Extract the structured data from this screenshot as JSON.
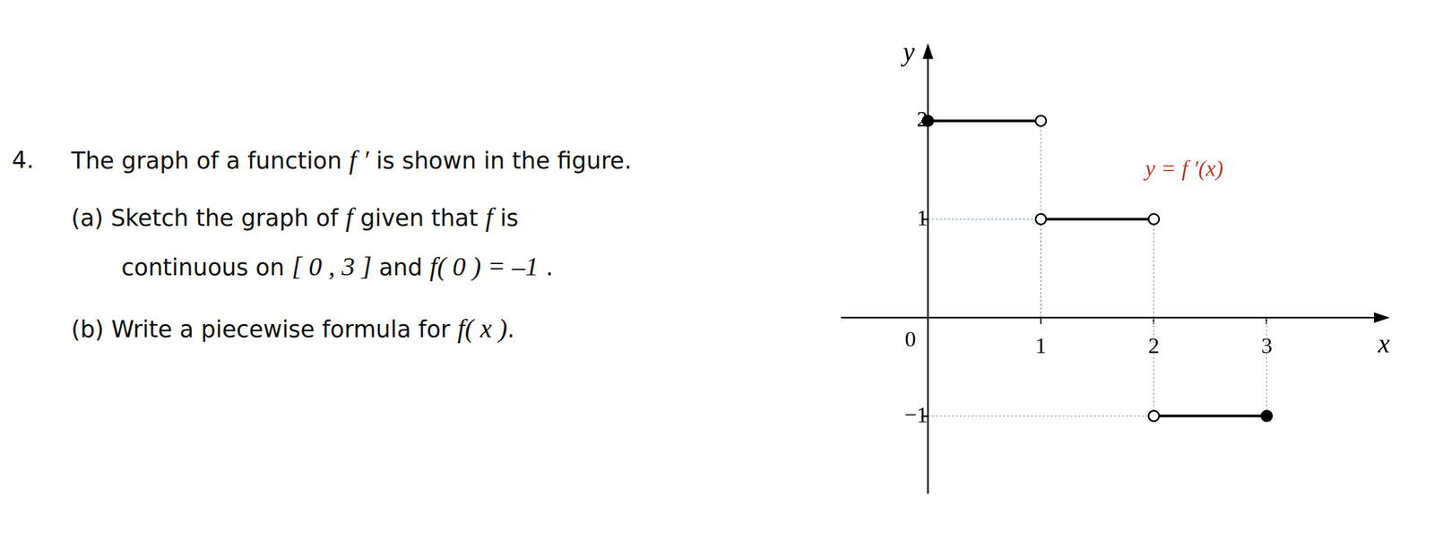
{
  "problem": {
    "number": "4.",
    "lines": [
      [
        {
          "text": "The graph of a function "
        },
        {
          "math": "f ′"
        },
        {
          "text": " is shown in the figure."
        }
      ],
      [
        {
          "text": "(a) Sketch the graph of "
        },
        {
          "math": "f"
        },
        {
          "text": " given that "
        },
        {
          "math": "f"
        },
        {
          "text": " is"
        }
      ],
      [
        {
          "text": "continuous on "
        },
        {
          "math": "[ 0 , 3 ]"
        },
        {
          "text": " and "
        },
        {
          "math": "f( 0 ) = –1"
        },
        {
          "text": " ."
        }
      ],
      [
        {
          "text": "(b) Write a piecewise formula for "
        },
        {
          "math": "f( x )"
        },
        {
          "text": "."
        }
      ]
    ]
  },
  "chart_data": {
    "type": "line",
    "x_label": "x",
    "y_label": "y",
    "xlim": [
      -0.77,
      4.09
    ],
    "ylim": [
      -1.79,
      2.79
    ],
    "xticks": [
      1,
      2,
      3
    ],
    "yticks": [
      {
        "value": -1,
        "label": "−1"
      },
      1,
      2
    ],
    "grid": false,
    "annotations": [
      {
        "text": "0",
        "x": 0,
        "y": 0
      },
      {
        "text": "y = f ′(x)",
        "x": 2.27,
        "y": 1.5,
        "color": "#c0392b"
      }
    ],
    "series": [
      {
        "color": "#000000",
        "x": [
          0,
          1
        ],
        "values": [
          2,
          2
        ],
        "markers": [
          "closed",
          "open"
        ]
      },
      {
        "color": "#000000",
        "x": [
          1,
          2
        ],
        "values": [
          1,
          1
        ],
        "markers": [
          "open",
          "open"
        ]
      },
      {
        "color": "#000000",
        "x": [
          2,
          3
        ],
        "values": [
          -1,
          -1
        ],
        "markers": [
          "open",
          "closed"
        ]
      }
    ]
  }
}
